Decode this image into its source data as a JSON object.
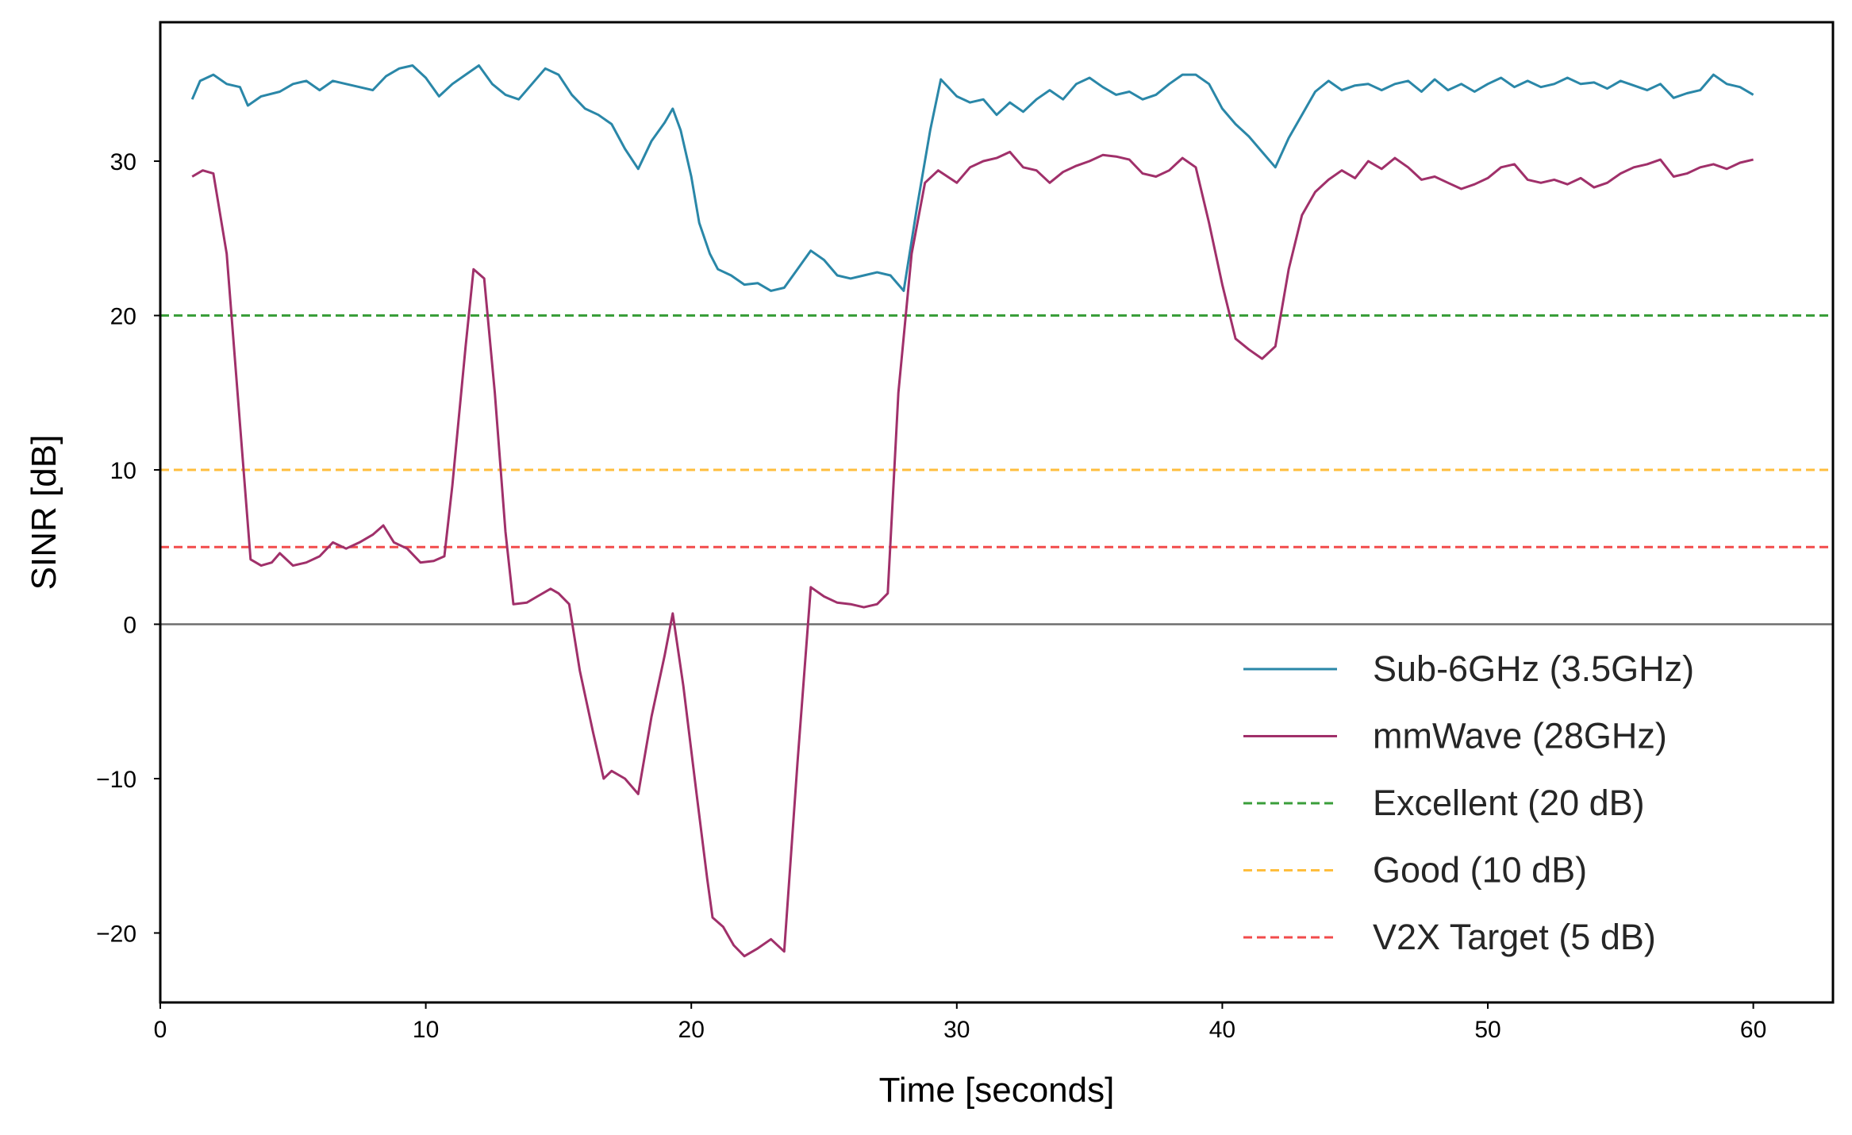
{
  "chart_data": {
    "type": "line",
    "title": "",
    "xlabel": "Time [seconds]",
    "ylabel": "SINR [dB]",
    "xlim": [
      0,
      63
    ],
    "ylim": [
      -24.5,
      39
    ],
    "xticks": [
      0,
      10,
      20,
      30,
      40,
      50,
      60
    ],
    "yticks": [
      -20,
      -10,
      0,
      10,
      20,
      30
    ],
    "grid": false,
    "legend_position": "lower-right",
    "zero_line": {
      "y": 0,
      "color": "#6e6e6e"
    },
    "series": [
      {
        "name": "Sub-6GHz (3.5GHz)",
        "color": "#2a87a8",
        "style": "solid",
        "points": [
          [
            1.2,
            34.0
          ],
          [
            1.5,
            35.2
          ],
          [
            2.0,
            35.6
          ],
          [
            2.5,
            35.0
          ],
          [
            3.0,
            34.8
          ],
          [
            3.3,
            33.6
          ],
          [
            3.8,
            34.2
          ],
          [
            4.5,
            34.5
          ],
          [
            5.0,
            35.0
          ],
          [
            5.5,
            35.2
          ],
          [
            6.0,
            34.6
          ],
          [
            6.5,
            35.2
          ],
          [
            7.0,
            35.0
          ],
          [
            7.5,
            34.8
          ],
          [
            8.0,
            34.6
          ],
          [
            8.5,
            35.5
          ],
          [
            9.0,
            36.0
          ],
          [
            9.5,
            36.2
          ],
          [
            10.0,
            35.4
          ],
          [
            10.5,
            34.2
          ],
          [
            11.0,
            35.0
          ],
          [
            11.5,
            35.6
          ],
          [
            12.0,
            36.2
          ],
          [
            12.5,
            35.0
          ],
          [
            13.0,
            34.3
          ],
          [
            13.5,
            34.0
          ],
          [
            14.0,
            35.0
          ],
          [
            14.5,
            36.0
          ],
          [
            15.0,
            35.6
          ],
          [
            15.5,
            34.3
          ],
          [
            16.0,
            33.4
          ],
          [
            16.5,
            33.0
          ],
          [
            17.0,
            32.4
          ],
          [
            17.5,
            30.8
          ],
          [
            18.0,
            29.5
          ],
          [
            18.5,
            31.3
          ],
          [
            19.0,
            32.5
          ],
          [
            19.3,
            33.4
          ],
          [
            19.6,
            32.0
          ],
          [
            20.0,
            29.0
          ],
          [
            20.3,
            26.0
          ],
          [
            20.7,
            24.0
          ],
          [
            21.0,
            23.0
          ],
          [
            21.5,
            22.6
          ],
          [
            22.0,
            22.0
          ],
          [
            22.5,
            22.1
          ],
          [
            23.0,
            21.6
          ],
          [
            23.5,
            21.8
          ],
          [
            24.0,
            23.0
          ],
          [
            24.5,
            24.2
          ],
          [
            25.0,
            23.6
          ],
          [
            25.5,
            22.6
          ],
          [
            26.0,
            22.4
          ],
          [
            26.5,
            22.6
          ],
          [
            27.0,
            22.8
          ],
          [
            27.5,
            22.6
          ],
          [
            28.0,
            21.6
          ],
          [
            28.5,
            27.0
          ],
          [
            29.0,
            32.0
          ],
          [
            29.4,
            35.3
          ],
          [
            30.0,
            34.2
          ],
          [
            30.5,
            33.8
          ],
          [
            31.0,
            34.0
          ],
          [
            31.5,
            33.0
          ],
          [
            32.0,
            33.8
          ],
          [
            32.5,
            33.2
          ],
          [
            33.0,
            34.0
          ],
          [
            33.5,
            34.6
          ],
          [
            34.0,
            34.0
          ],
          [
            34.5,
            35.0
          ],
          [
            35.0,
            35.4
          ],
          [
            35.5,
            34.8
          ],
          [
            36.0,
            34.3
          ],
          [
            36.5,
            34.5
          ],
          [
            37.0,
            34.0
          ],
          [
            37.5,
            34.3
          ],
          [
            38.0,
            35.0
          ],
          [
            38.5,
            35.6
          ],
          [
            39.0,
            35.6
          ],
          [
            39.5,
            35.0
          ],
          [
            40.0,
            33.4
          ],
          [
            40.5,
            32.4
          ],
          [
            41.0,
            31.6
          ],
          [
            41.5,
            30.6
          ],
          [
            42.0,
            29.6
          ],
          [
            42.5,
            31.5
          ],
          [
            43.0,
            33.0
          ],
          [
            43.5,
            34.5
          ],
          [
            44.0,
            35.2
          ],
          [
            44.5,
            34.6
          ],
          [
            45.0,
            34.9
          ],
          [
            45.5,
            35.0
          ],
          [
            46.0,
            34.6
          ],
          [
            46.5,
            35.0
          ],
          [
            47.0,
            35.2
          ],
          [
            47.5,
            34.5
          ],
          [
            48.0,
            35.3
          ],
          [
            48.5,
            34.6
          ],
          [
            49.0,
            35.0
          ],
          [
            49.5,
            34.5
          ],
          [
            50.0,
            35.0
          ],
          [
            50.5,
            35.4
          ],
          [
            51.0,
            34.8
          ],
          [
            51.5,
            35.2
          ],
          [
            52.0,
            34.8
          ],
          [
            52.5,
            35.0
          ],
          [
            53.0,
            35.4
          ],
          [
            53.5,
            35.0
          ],
          [
            54.0,
            35.1
          ],
          [
            54.5,
            34.7
          ],
          [
            55.0,
            35.2
          ],
          [
            55.5,
            34.9
          ],
          [
            56.0,
            34.6
          ],
          [
            56.5,
            35.0
          ],
          [
            57.0,
            34.1
          ],
          [
            57.5,
            34.4
          ],
          [
            58.0,
            34.6
          ],
          [
            58.5,
            35.6
          ],
          [
            59.0,
            35.0
          ],
          [
            59.5,
            34.8
          ],
          [
            60.0,
            34.3
          ]
        ]
      },
      {
        "name": "mmWave (28GHz)",
        "color": "#a0306a",
        "style": "solid",
        "points": [
          [
            1.2,
            29.0
          ],
          [
            1.6,
            29.4
          ],
          [
            2.0,
            29.2
          ],
          [
            2.5,
            24.0
          ],
          [
            3.0,
            13.0
          ],
          [
            3.4,
            4.2
          ],
          [
            3.8,
            3.8
          ],
          [
            4.2,
            4.0
          ],
          [
            4.5,
            4.6
          ],
          [
            5.0,
            3.8
          ],
          [
            5.5,
            4.0
          ],
          [
            6.0,
            4.4
          ],
          [
            6.5,
            5.3
          ],
          [
            7.0,
            4.9
          ],
          [
            7.5,
            5.3
          ],
          [
            8.0,
            5.8
          ],
          [
            8.4,
            6.4
          ],
          [
            8.8,
            5.3
          ],
          [
            9.3,
            4.9
          ],
          [
            9.8,
            4.0
          ],
          [
            10.3,
            4.1
          ],
          [
            10.7,
            4.4
          ],
          [
            11.0,
            9.0
          ],
          [
            11.5,
            18.0
          ],
          [
            11.8,
            23.0
          ],
          [
            12.2,
            22.4
          ],
          [
            12.6,
            15.0
          ],
          [
            13.0,
            6.0
          ],
          [
            13.3,
            1.3
          ],
          [
            13.8,
            1.4
          ],
          [
            14.2,
            1.8
          ],
          [
            14.7,
            2.3
          ],
          [
            15.0,
            2.0
          ],
          [
            15.4,
            1.3
          ],
          [
            15.8,
            -3.0
          ],
          [
            16.3,
            -7.0
          ],
          [
            16.7,
            -10.0
          ],
          [
            17.0,
            -9.5
          ],
          [
            17.5,
            -10.0
          ],
          [
            18.0,
            -11.0
          ],
          [
            18.5,
            -6.0
          ],
          [
            19.0,
            -2.0
          ],
          [
            19.3,
            0.7
          ],
          [
            19.7,
            -4.0
          ],
          [
            20.2,
            -11.0
          ],
          [
            20.6,
            -16.5
          ],
          [
            20.8,
            -19.0
          ],
          [
            21.2,
            -19.6
          ],
          [
            21.6,
            -20.8
          ],
          [
            22.0,
            -21.5
          ],
          [
            22.5,
            -21.0
          ],
          [
            23.0,
            -20.4
          ],
          [
            23.5,
            -21.2
          ],
          [
            24.0,
            -9.0
          ],
          [
            24.5,
            2.4
          ],
          [
            25.0,
            1.8
          ],
          [
            25.5,
            1.4
          ],
          [
            26.0,
            1.3
          ],
          [
            26.5,
            1.1
          ],
          [
            27.0,
            1.3
          ],
          [
            27.4,
            2.0
          ],
          [
            27.8,
            15.0
          ],
          [
            28.3,
            24.0
          ],
          [
            28.8,
            28.6
          ],
          [
            29.3,
            29.4
          ],
          [
            30.0,
            28.6
          ],
          [
            30.5,
            29.6
          ],
          [
            31.0,
            30.0
          ],
          [
            31.5,
            30.2
          ],
          [
            32.0,
            30.6
          ],
          [
            32.5,
            29.6
          ],
          [
            33.0,
            29.4
          ],
          [
            33.5,
            28.6
          ],
          [
            34.0,
            29.3
          ],
          [
            34.5,
            29.7
          ],
          [
            35.0,
            30.0
          ],
          [
            35.5,
            30.4
          ],
          [
            36.0,
            30.3
          ],
          [
            36.5,
            30.1
          ],
          [
            37.0,
            29.2
          ],
          [
            37.5,
            29.0
          ],
          [
            38.0,
            29.4
          ],
          [
            38.5,
            30.2
          ],
          [
            39.0,
            29.6
          ],
          [
            39.5,
            26.0
          ],
          [
            40.0,
            22.0
          ],
          [
            40.5,
            18.5
          ],
          [
            41.0,
            17.8
          ],
          [
            41.5,
            17.2
          ],
          [
            42.0,
            18.0
          ],
          [
            42.5,
            23.0
          ],
          [
            43.0,
            26.5
          ],
          [
            43.5,
            28.0
          ],
          [
            44.0,
            28.8
          ],
          [
            44.5,
            29.4
          ],
          [
            45.0,
            28.9
          ],
          [
            45.5,
            30.0
          ],
          [
            46.0,
            29.5
          ],
          [
            46.5,
            30.2
          ],
          [
            47.0,
            29.6
          ],
          [
            47.5,
            28.8
          ],
          [
            48.0,
            29.0
          ],
          [
            48.5,
            28.6
          ],
          [
            49.0,
            28.2
          ],
          [
            49.5,
            28.5
          ],
          [
            50.0,
            28.9
          ],
          [
            50.5,
            29.6
          ],
          [
            51.0,
            29.8
          ],
          [
            51.5,
            28.8
          ],
          [
            52.0,
            28.6
          ],
          [
            52.5,
            28.8
          ],
          [
            53.0,
            28.5
          ],
          [
            53.5,
            28.9
          ],
          [
            54.0,
            28.3
          ],
          [
            54.5,
            28.6
          ],
          [
            55.0,
            29.2
          ],
          [
            55.5,
            29.6
          ],
          [
            56.0,
            29.8
          ],
          [
            56.5,
            30.1
          ],
          [
            57.0,
            29.0
          ],
          [
            57.5,
            29.2
          ],
          [
            58.0,
            29.6
          ],
          [
            58.5,
            29.8
          ],
          [
            59.0,
            29.5
          ],
          [
            59.5,
            29.9
          ],
          [
            60.0,
            30.1
          ]
        ]
      },
      {
        "name": "Excellent (20 dB)",
        "color": "#3a9e3a",
        "style": "dashed",
        "hline": 20
      },
      {
        "name": "Good (10 dB)",
        "color": "#ffbe3d",
        "style": "dashed",
        "hline": 10
      },
      {
        "name": "V2X Target (5 dB)",
        "color": "#f24b4b",
        "style": "dashed",
        "hline": 5
      }
    ]
  }
}
